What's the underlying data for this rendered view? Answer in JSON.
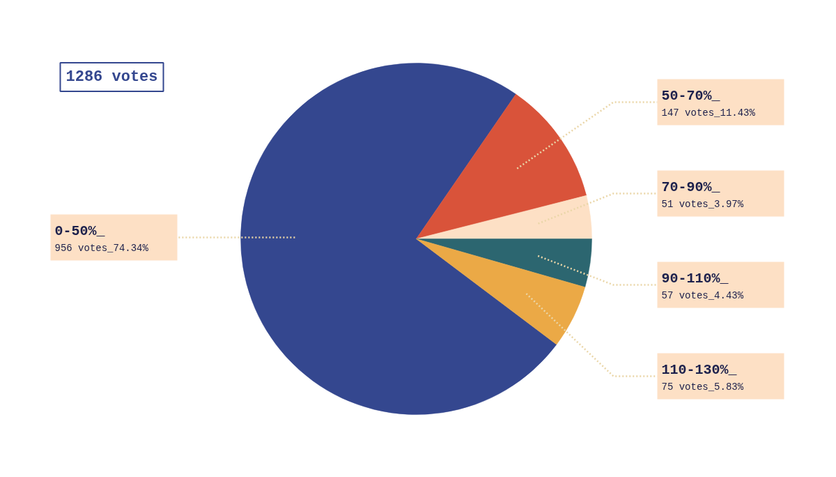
{
  "chart_data": {
    "type": "pie",
    "title": "1286 votes",
    "categories": [
      "0-50%_",
      "50-70%_",
      "70-90%_",
      "90-110%_",
      "110-130%_"
    ],
    "values": [
      956,
      147,
      51,
      57,
      75
    ],
    "value_labels": [
      "956 votes_74.34%",
      "147 votes_11.43%",
      "51 votes_3.97%",
      "57 votes_4.43%",
      "75 votes_5.83%"
    ],
    "colors": [
      "#34478f",
      "#d9533a",
      "#fde0c5",
      "#2c6670",
      "#eba946"
    ]
  }
}
